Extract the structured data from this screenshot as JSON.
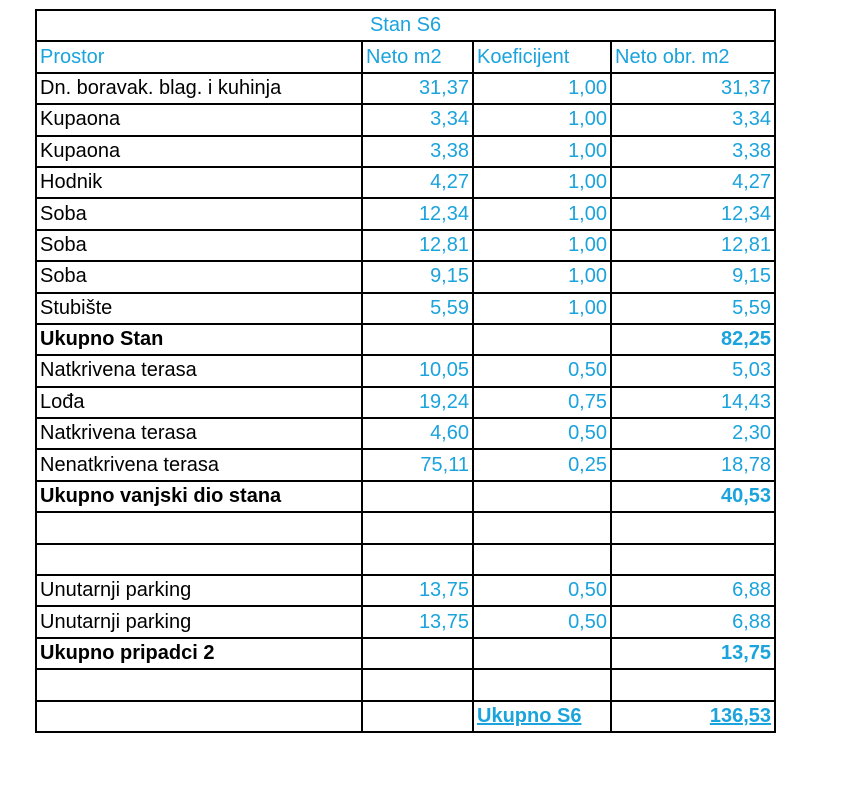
{
  "title": "Stan S6",
  "headers": [
    "Prostor",
    "Neto m2",
    "Koeficijent",
    "Neto obr. m2"
  ],
  "rows_stan": [
    {
      "name": "Dn. boravak. blag. i kuhinja",
      "neto": "31,37",
      "koef": "1,00",
      "obr": "31,37"
    },
    {
      "name": "Kupaona",
      "neto": "3,34",
      "koef": "1,00",
      "obr": "3,34"
    },
    {
      "name": "Kupaona",
      "neto": "3,38",
      "koef": "1,00",
      "obr": "3,38"
    },
    {
      "name": "Hodnik",
      "neto": "4,27",
      "koef": "1,00",
      "obr": "4,27"
    },
    {
      "name": "Soba",
      "neto": "12,34",
      "koef": "1,00",
      "obr": "12,34"
    },
    {
      "name": "Soba",
      "neto": "12,81",
      "koef": "1,00",
      "obr": "12,81"
    },
    {
      "name": "Soba",
      "neto": "9,15",
      "koef": "1,00",
      "obr": "9,15"
    },
    {
      "name": "Stubište",
      "neto": "5,59",
      "koef": "1,00",
      "obr": "5,59"
    }
  ],
  "total_stan": {
    "label": "Ukupno Stan",
    "value": "82,25"
  },
  "rows_vanjski": [
    {
      "name": "Natkrivena terasa",
      "neto": "10,05",
      "koef": "0,50",
      "obr": "5,03"
    },
    {
      "name": "Lođa",
      "neto": "19,24",
      "koef": "0,75",
      "obr": "14,43"
    },
    {
      "name": "Natkrivena terasa",
      "neto": "4,60",
      "koef": "0,50",
      "obr": "2,30"
    },
    {
      "name": "Nenatkrivena terasa",
      "neto": "75,11",
      "koef": "0,25",
      "obr": "18,78"
    }
  ],
  "total_vanjski": {
    "label": "Ukupno vanjski dio stana",
    "value": "40,53"
  },
  "rows_pripadci": [
    {
      "name": "Unutarnji parking",
      "neto": "13,75",
      "koef": "0,50",
      "obr": "6,88"
    },
    {
      "name": "Unutarnji parking",
      "neto": "13,75",
      "koef": "0,50",
      "obr": "6,88"
    }
  ],
  "total_pripadci": {
    "label": "Ukupno pripadci 2",
    "value": "13,75"
  },
  "grand_total": {
    "label": "Ukupno S6",
    "value": "136,53"
  },
  "colors": {
    "accent": "#1aa3dc",
    "text": "#000000",
    "grid": "#000000"
  }
}
